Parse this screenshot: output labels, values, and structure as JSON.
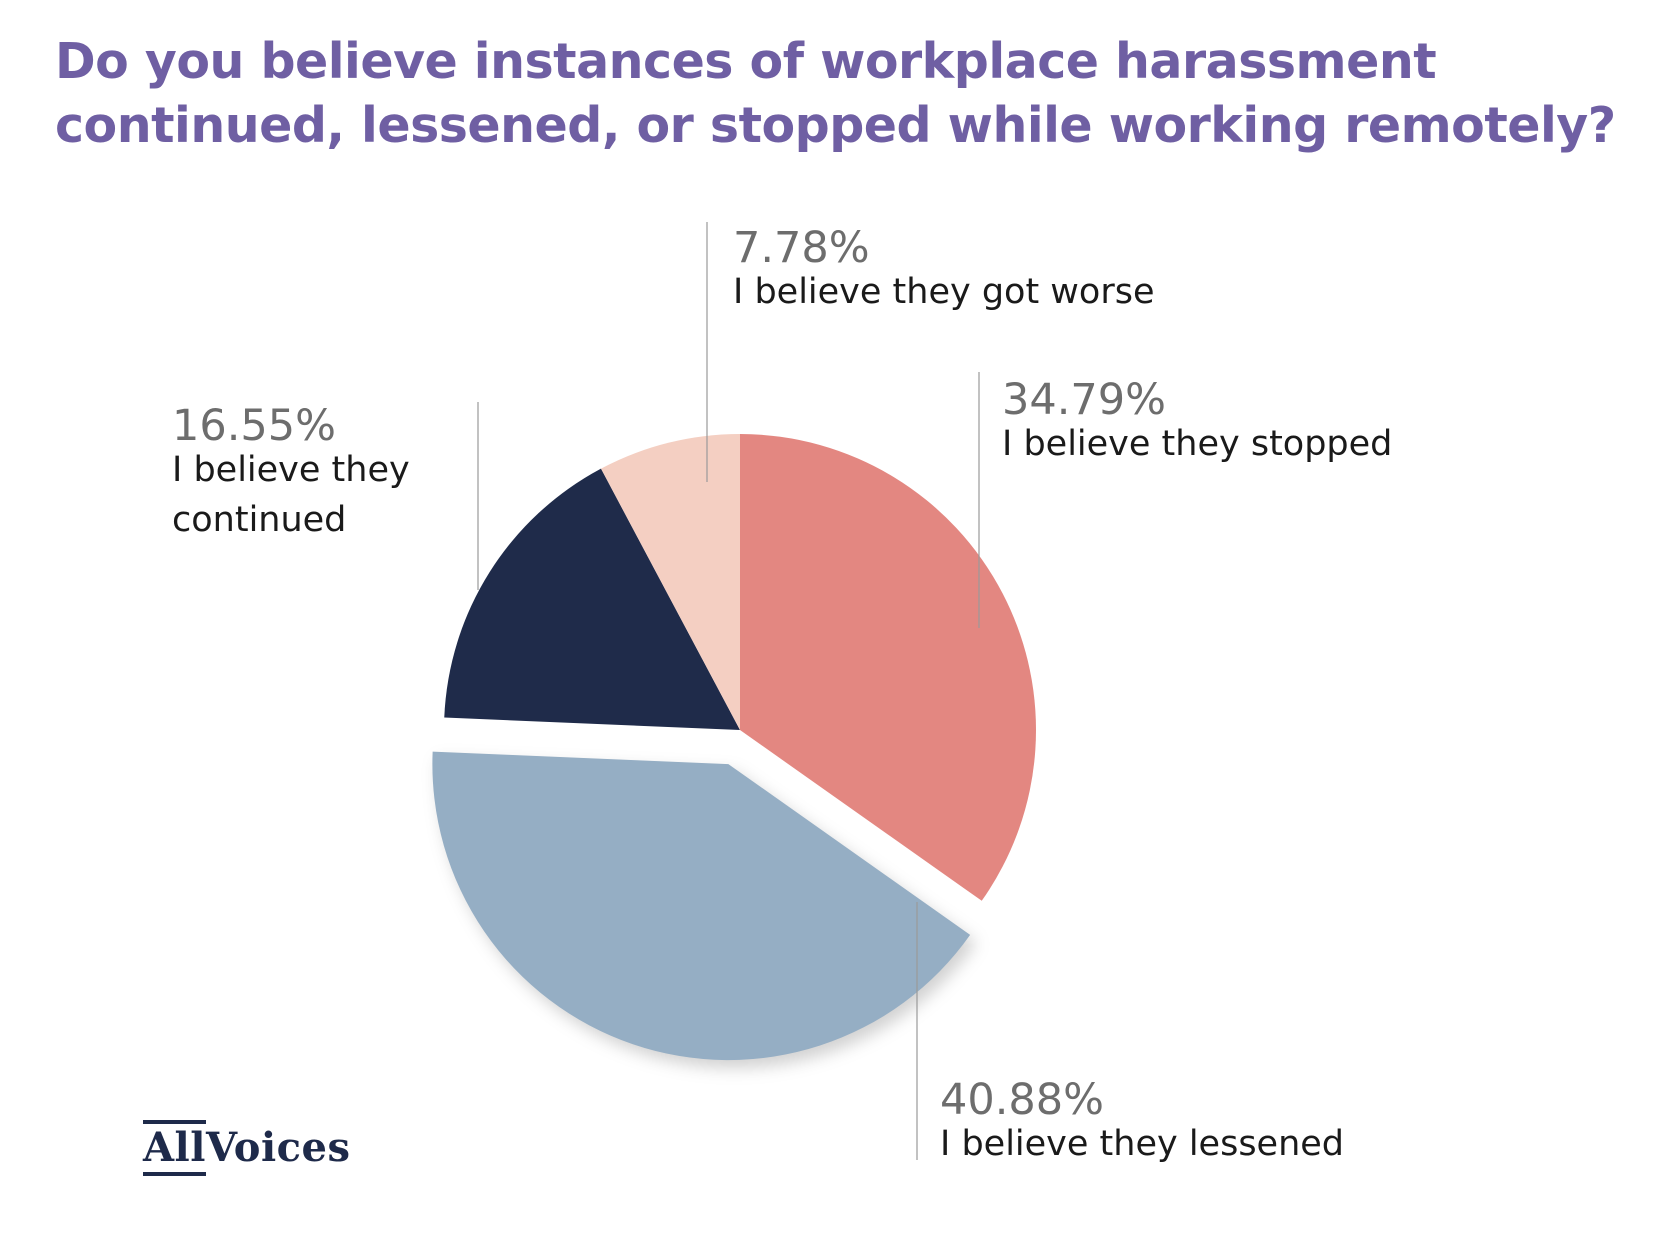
{
  "title_lines": [
    "Do you believe instances of workplace harassment",
    "continued, lessened, or stopped while working remotely?"
  ],
  "logo": {
    "part1": "All",
    "part2": "Voices"
  },
  "chart_data": {
    "type": "pie",
    "title": "Do you believe instances of workplace harassment continued, lessened, or stopped while working remotely?",
    "slices": [
      {
        "label": "I believe they stopped",
        "value": 34.79,
        "display": "34.79%",
        "color": "#e38781"
      },
      {
        "label": "I believe they lessened",
        "value": 40.88,
        "display": "40.88%",
        "color": "#95aec4",
        "exploded": true
      },
      {
        "label": "I believe they continued",
        "value": 16.55,
        "display": "16.55%",
        "color": "#1f2b4a"
      },
      {
        "label": "I believe they got worse",
        "value": 7.78,
        "display": "7.78%",
        "color": "#f4cfc2"
      }
    ]
  }
}
